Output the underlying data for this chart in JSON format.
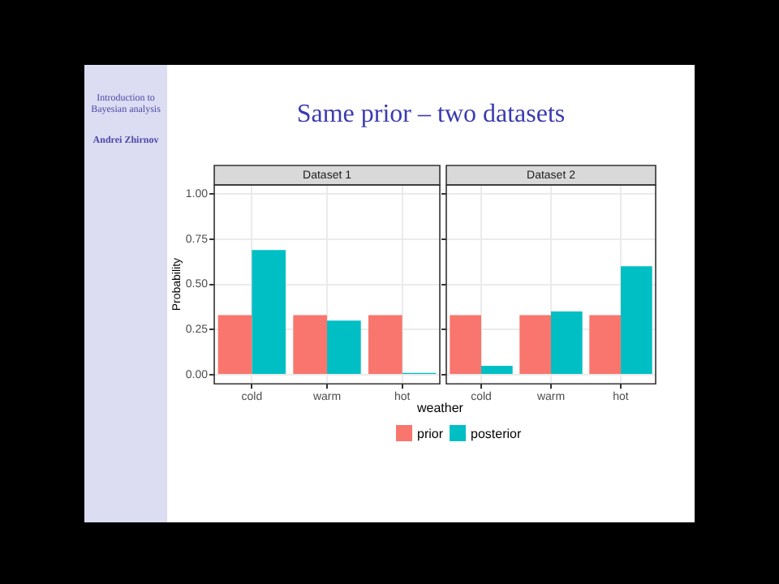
{
  "chart_data": [
    {
      "type": "bar",
      "title": "Dataset 1",
      "xlabel": "weather",
      "ylabel": "Probability",
      "annotations": [
        "Same prior – two datasets",
        "Introduction to Bayesian analysis",
        "Andrei Zhirnov"
      ],
      "categories": [
        "cold",
        "warm",
        "hot"
      ],
      "series": [
        {
          "name": "prior",
          "color": "#f8766d",
          "values": [
            0.33,
            0.33,
            0.33
          ]
        },
        {
          "name": "posterior",
          "color": "#00bfc4",
          "values": [
            0.69,
            0.3,
            0.01
          ]
        }
      ],
      "ylim": [
        -0.05,
        1.05
      ],
      "yticks": [
        {
          "value": 0,
          "label": "0.00"
        },
        {
          "value": 0.25,
          "label": "0.25"
        },
        {
          "value": 0.5,
          "label": "0.50"
        },
        {
          "value": 0.75,
          "label": "0.75"
        },
        {
          "value": 1,
          "label": "1.00"
        }
      ],
      "grid": true,
      "legend": "bottom"
    },
    {
      "type": "bar",
      "title": "Dataset 2",
      "categories": [
        "cold",
        "warm",
        "hot"
      ],
      "series": [
        {
          "color": "#f8766d",
          "values": [
            0.33,
            0.33,
            0.33
          ]
        },
        {
          "color": "#00bfc4",
          "values": [
            0.05,
            0.35,
            0.6
          ]
        }
      ],
      "ylim": [
        -0.05,
        1.05
      ],
      "yticks": [
        0,
        0.25,
        0.5,
        0.75,
        1
      ],
      "grid": true,
      "tick_labels": "x"
    }
  ]
}
